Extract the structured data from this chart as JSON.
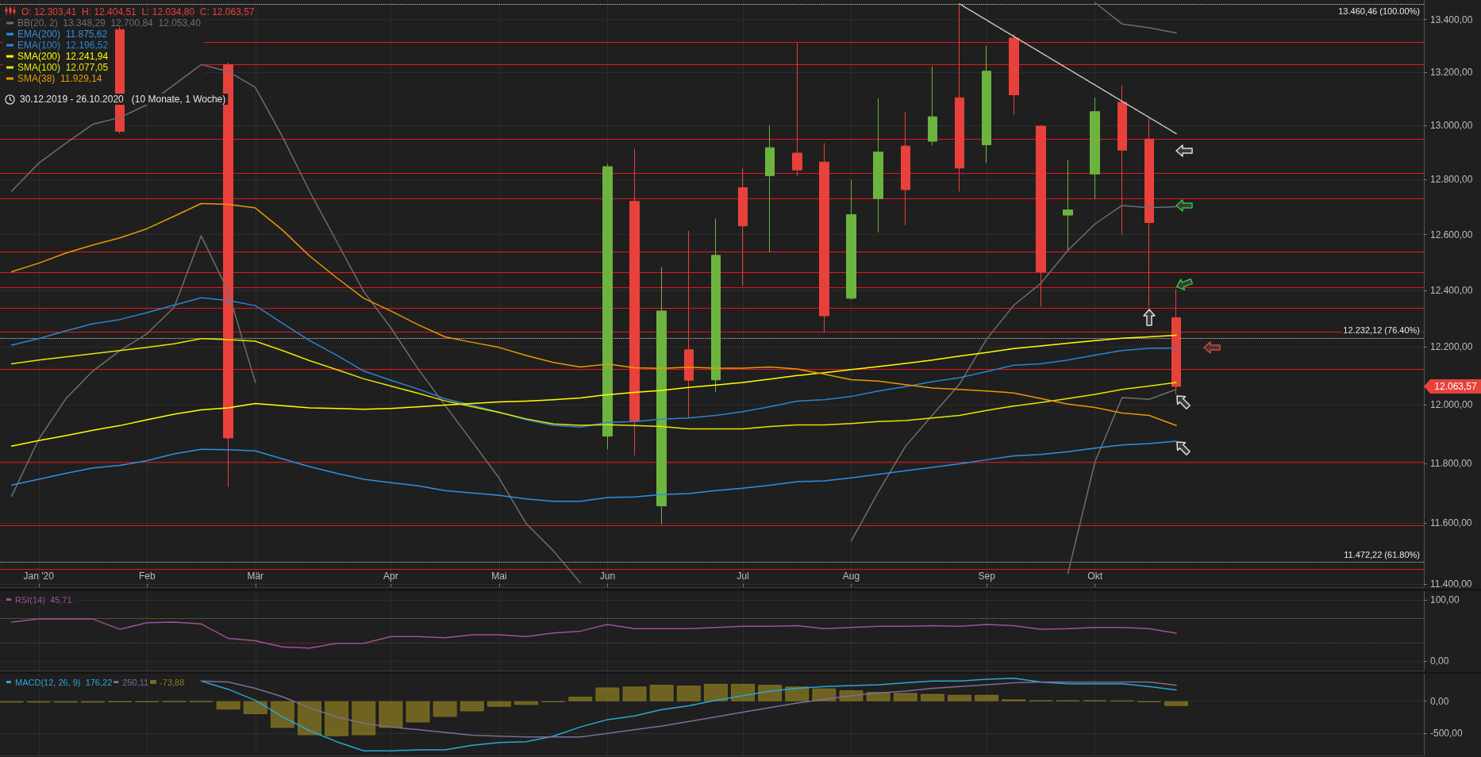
{
  "chart_data": [
    {
      "type": "candlestick",
      "title": "O: 12.303,41  H: 12.404,51  L: 12.034,80  C: 12.063,57",
      "subtitle": "30.12.2019 - 26.10.2020   (10 Monate, 1 Woche)",
      "x": [
        "2019-12-30",
        "2020-01-06",
        "2020-01-13",
        "2020-01-20",
        "2020-01-27",
        "2020-02-03",
        "2020-02-10",
        "2020-02-17",
        "2020-02-24",
        "2020-03-02",
        "2020-03-09",
        "2020-03-16",
        "2020-03-23",
        "2020-03-30",
        "2020-04-06",
        "2020-04-13",
        "2020-04-20",
        "2020-04-27",
        "2020-05-04",
        "2020-05-11",
        "2020-05-18",
        "2020-05-25",
        "2020-06-01",
        "2020-06-08",
        "2020-06-15",
        "2020-06-22",
        "2020-06-29",
        "2020-07-06",
        "2020-07-13",
        "2020-07-20",
        "2020-07-27",
        "2020-08-03",
        "2020-08-10",
        "2020-08-17",
        "2020-08-24",
        "2020-08-31",
        "2020-09-07",
        "2020-09-14",
        "2020-09-21",
        "2020-09-28",
        "2020-10-05",
        "2020-10-12",
        "2020-10-19",
        "2020-10-26"
      ],
      "ohlc": [
        null,
        null,
        null,
        null,
        [
          13361,
          13370,
          12970,
          12978
        ],
        null,
        null,
        null,
        [
          13228,
          13236,
          11721,
          11887
        ],
        null,
        null,
        null,
        null,
        null,
        null,
        null,
        null,
        null,
        null,
        null,
        null,
        null,
        [
          11893,
          12857,
          11848,
          12847
        ],
        [
          12720,
          12913,
          11828,
          11944
        ],
        [
          11658,
          12482,
          11596,
          12327
        ],
        [
          12191,
          12613,
          11955,
          12085
        ],
        [
          12086,
          12658,
          12044,
          12525
        ],
        [
          12770,
          12842,
          12416,
          12631
        ],
        [
          12814,
          13000,
          12536,
          12917
        ],
        [
          12897,
          13310,
          12812,
          12835
        ],
        [
          12864,
          12934,
          12254,
          12310
        ],
        [
          12372,
          12798,
          12367,
          12672
        ],
        [
          12730,
          13101,
          12607,
          12901
        ],
        [
          12923,
          13051,
          12633,
          12763
        ],
        [
          12941,
          13221,
          12926,
          13032
        ],
        [
          13103,
          13460,
          12756,
          12842
        ],
        [
          12928,
          13299,
          12860,
          13203
        ],
        [
          13329,
          13343,
          13038,
          13114
        ],
        [
          12997,
          13000,
          12342,
          12466
        ],
        [
          12670,
          12871,
          12541,
          12689
        ],
        [
          12820,
          13103,
          12729,
          13051
        ],
        [
          13086,
          13152,
          12600,
          12908
        ],
        [
          12949,
          13025,
          12342,
          12643
        ],
        [
          12303.41,
          12404.51,
          12034.8,
          12063.57
        ]
      ],
      "series": [
        {
          "type": "line",
          "name": "BB(20, 2)  13.348,29  12.700,84  12.053,40",
          "color": "#6e6e6e",
          "values": [
            null,
            null,
            null,
            null,
            null,
            null,
            null,
            null,
            null,
            null,
            null,
            null,
            null,
            null,
            null,
            null,
            null,
            null,
            null,
            null,
            null,
            null,
            null,
            null,
            null,
            null,
            null,
            null,
            null,
            null,
            null,
            null,
            null,
            null,
            null,
            null,
            null,
            null,
            null,
            null,
            13465,
            13383,
            13368,
            13348.29
          ]
        },
        {
          "type": "line",
          "color": "#6e6e6e",
          "values": [
            12757,
            12860,
            12933,
            13004,
            13029,
            13077,
            13152,
            13228,
            13202,
            13142,
            12958,
            12757,
            12575,
            12396,
            12268,
            12125,
            11999,
            11875,
            11751,
            11599,
            11509,
            11404,
            null,
            null,
            null,
            null,
            null,
            null,
            null,
            null,
            null,
            11541,
            11705,
            11858,
            11965,
            12072,
            12228,
            12347,
            12425,
            12543,
            12638,
            12705,
            12697,
            12700.84
          ]
        },
        {
          "type": "line",
          "color": "#6e6e6e",
          "values": [
            11690,
            11882,
            12021,
            12117,
            12188,
            12247,
            12340,
            12595,
            12396,
            12077,
            null,
            null,
            null,
            null,
            null,
            null,
            null,
            null,
            null,
            null,
            null,
            null,
            null,
            null,
            null,
            null,
            null,
            null,
            null,
            null,
            null,
            null,
            null,
            null,
            null,
            null,
            null,
            null,
            null,
            11434,
            11806,
            12025,
            12019,
            12053.4
          ]
        },
        {
          "type": "line",
          "name": "EMA(200)  11.875,62",
          "color": "#2f8fe6",
          "values": [
            11728,
            11747,
            11767,
            11785,
            11794,
            11810,
            11833,
            11848,
            11847,
            11843,
            11816,
            11790,
            11767,
            11747,
            11736,
            11725,
            11709,
            11701,
            11693,
            11681,
            11673,
            11673,
            11686,
            11688,
            11696,
            11699,
            11709,
            11717,
            11727,
            11739,
            11742,
            11752,
            11764,
            11776,
            11787,
            11799,
            11813,
            11826,
            11831,
            11840,
            11852,
            11863,
            11868,
            11875.62
          ]
        },
        {
          "type": "line",
          "name": "EMA(100)  12.196,52",
          "color": "#2a85d0",
          "values": [
            12207,
            12230,
            12257,
            12282,
            12297,
            12321,
            12348,
            12374,
            12364,
            12346,
            12284,
            12223,
            12172,
            12117,
            12085,
            12055,
            12021,
            11999,
            11975,
            11949,
            11930,
            11924,
            11940,
            11943,
            11951,
            11955,
            11964,
            11977,
            11994,
            12013,
            12018,
            12029,
            12048,
            12063,
            12080,
            12094,
            12115,
            12137,
            12142,
            12155,
            12172,
            12188,
            12196,
            12196.52
          ]
        },
        {
          "type": "line",
          "name": "SMA(200)  12.241,94",
          "color": "#ffff00",
          "values": [
            11859,
            11878,
            11895,
            11913,
            11929,
            11949,
            11968,
            11983,
            11990,
            12005,
            11997,
            11990,
            11988,
            11985,
            11988,
            11993,
            11999,
            12005,
            12010,
            12013,
            12018,
            12024,
            12035,
            12043,
            12050,
            12060,
            12068,
            12077,
            12089,
            12101,
            12111,
            12122,
            12132,
            12143,
            12155,
            12169,
            12181,
            12195,
            12204,
            12214,
            12223,
            12231,
            12236,
            12241.94
          ]
        },
        {
          "type": "line",
          "name": "SMA(100)  12.077,05",
          "color": "#e6e600",
          "values": [
            12142,
            12155,
            12166,
            12177,
            12188,
            12199,
            12212,
            12230,
            12226,
            12221,
            12188,
            12153,
            12122,
            12090,
            12065,
            12040,
            12014,
            11994,
            11974,
            11952,
            11935,
            11930,
            11932,
            11929,
            11926,
            11918,
            11918,
            11918,
            11926,
            11931,
            11931,
            11936,
            11943,
            11946,
            11955,
            11964,
            11981,
            11996,
            12008,
            12022,
            12036,
            12053,
            12065,
            12077.05
          ]
        },
        {
          "type": "line",
          "name": "SMA(38)  11.929,14",
          "color": "#e89a00",
          "values": [
            12466,
            12497,
            12533,
            12562,
            12588,
            12621,
            12666,
            12712,
            12709,
            12696,
            12616,
            12523,
            12445,
            12372,
            12327,
            12279,
            12236,
            12217,
            12199,
            12171,
            12147,
            12131,
            12141,
            12128,
            12126,
            12130,
            12127,
            12127,
            12131,
            12124,
            12106,
            12087,
            12082,
            12070,
            12058,
            12053,
            12048,
            12041,
            12022,
            12003,
            11991,
            11972,
            11964,
            11929.14
          ]
        },
        {
          "type": "line",
          "color": "#d0d0d0",
          "line_style": "dotted",
          "x": [
            "2020-08-31",
            "2020-10-26"
          ],
          "values": [
            13460,
            12969
          ]
        }
      ],
      "xlim": [
        "2019-12-27",
        "2020-12-29"
      ],
      "xticks": [
        {
          "value": "2020-01-06",
          "label": "Jan '20"
        },
        {
          "value": "2020-02-03",
          "label": "Feb"
        },
        {
          "value": "2020-03-02",
          "label": "Mär"
        },
        {
          "value": "2020-04-06",
          "label": "Apr"
        },
        {
          "value": "2020-05-04",
          "label": "Mai"
        },
        {
          "value": "2020-06-01",
          "label": "Jun"
        },
        {
          "value": "2020-07-06",
          "label": "Jul"
        },
        {
          "value": "2020-08-03",
          "label": "Aug"
        },
        {
          "value": "2020-09-07",
          "label": "Sep"
        },
        {
          "value": "2020-10-05",
          "label": "Okt"
        }
      ],
      "ylim": [
        11390,
        13475
      ],
      "log": true,
      "yticks": [
        {
          "value": 11400,
          "label": "11.400,00"
        },
        {
          "value": 11600,
          "label": "11.600,00"
        },
        {
          "value": 11800,
          "label": "11.800,00"
        },
        {
          "value": 12000,
          "label": "12.000,00"
        },
        {
          "value": 12200,
          "label": "12.200,00"
        },
        {
          "value": 12400,
          "label": "12.400,00"
        },
        {
          "value": 12600,
          "label": "12.600,00"
        },
        {
          "value": 12800,
          "label": "12.800,00"
        },
        {
          "value": 13000,
          "label": "13.000,00"
        },
        {
          "value": 13200,
          "label": "13.200,00"
        },
        {
          "value": 13400,
          "label": "13.400,00"
        }
      ],
      "grid": true,
      "legend": "top left",
      "marker": "none",
      "ref_lines": [
        {
          "axis": "y",
          "value": 13312,
          "label": null,
          "color": "#e8141b"
        },
        {
          "axis": "y",
          "value": 13229,
          "label": null,
          "color": "#e8141b"
        },
        {
          "axis": "y",
          "value": 12949,
          "label": null,
          "color": "#e8141b"
        },
        {
          "axis": "y",
          "value": 12823,
          "label": null,
          "color": "#e8141b"
        },
        {
          "axis": "y",
          "value": 12729,
          "label": null,
          "color": "#e8141b"
        },
        {
          "axis": "y",
          "value": 12537,
          "label": null,
          "color": "#e8141b"
        },
        {
          "axis": "y",
          "value": 12464,
          "label": null,
          "color": "#e8141b"
        },
        {
          "axis": "y",
          "value": 12411,
          "label": null,
          "color": "#e8141b"
        },
        {
          "axis": "y",
          "value": 12338,
          "label": null,
          "color": "#e8141b"
        },
        {
          "axis": "y",
          "value": 12254,
          "label": null,
          "color": "#e8141b"
        },
        {
          "axis": "y",
          "value": 12124,
          "label": null,
          "color": "#e8141b"
        },
        {
          "axis": "y",
          "value": 11806,
          "label": null,
          "color": "#e8141b"
        },
        {
          "axis": "y",
          "value": 11592,
          "label": null,
          "color": "#e8141b"
        },
        {
          "axis": "y",
          "value": 11449,
          "label": null,
          "color": "#e8141b"
        },
        {
          "axis": "y",
          "value": 13460.46,
          "label": "13.460,46 (100.00%)",
          "color": "#cfcfcf",
          "line_style": "dotted"
        },
        {
          "axis": "y",
          "value": 12232.12,
          "label": "12.232,12 (76.40%)",
          "color": "#cfcfcf",
          "line_style": "dotted"
        },
        {
          "axis": "y",
          "value": 11472.22,
          "label": "11.472,22 (61.80%)",
          "color": "#cfcfcf",
          "line_style": "dotted"
        }
      ],
      "annotations": [
        "12.063,57"
      ]
    },
    {
      "type": "line",
      "x": [
        "2019-12-30",
        "2020-01-06",
        "2020-01-13",
        "2020-01-20",
        "2020-01-27",
        "2020-02-03",
        "2020-02-10",
        "2020-02-17",
        "2020-02-24",
        "2020-03-02",
        "2020-03-09",
        "2020-03-16",
        "2020-03-23",
        "2020-03-30",
        "2020-04-06",
        "2020-04-13",
        "2020-04-20",
        "2020-04-27",
        "2020-05-04",
        "2020-05-11",
        "2020-05-18",
        "2020-05-25",
        "2020-06-01",
        "2020-06-08",
        "2020-06-15",
        "2020-06-22",
        "2020-06-29",
        "2020-07-06",
        "2020-07-13",
        "2020-07-20",
        "2020-07-27",
        "2020-08-03",
        "2020-08-10",
        "2020-08-17",
        "2020-08-24",
        "2020-08-31",
        "2020-09-07",
        "2020-09-14",
        "2020-09-21",
        "2020-09-28",
        "2020-10-05",
        "2020-10-12",
        "2020-10-19",
        "2020-10-26"
      ],
      "series": [
        {
          "name": "RSI(14)  45,71",
          "color": "#a0509a",
          "values": [
            64,
            69,
            69,
            69,
            52,
            63,
            64,
            61,
            37,
            33,
            23,
            21,
            29,
            29,
            40,
            40,
            38,
            43,
            43,
            40,
            46,
            49,
            60,
            53,
            53,
            53,
            55,
            57,
            57,
            58,
            53,
            55,
            57,
            57,
            58,
            57,
            60,
            58,
            52,
            53,
            55,
            55,
            53,
            45.71
          ]
        }
      ],
      "xlim": [
        "2019-12-27",
        "2020-12-29"
      ],
      "xticks": [
        "2020-01-06",
        "2020-02-03",
        "2020-03-02",
        "2020-04-06",
        "2020-05-04",
        "2020-06-01",
        "2020-07-06",
        "2020-08-03",
        "2020-09-07",
        "2020-10-05"
      ],
      "ylim": [
        -16,
        115
      ],
      "yticks": [
        {
          "value": 0,
          "label": "0,00"
        },
        {
          "value": 100,
          "label": "100,00"
        }
      ],
      "tick_labels": "y",
      "grid": true,
      "legend": "top left",
      "marker": "none",
      "ref_lines": [
        {
          "axis": "y",
          "value": 70,
          "label": null,
          "color": "#6f8f3a",
          "line_style": "dotted"
        },
        {
          "axis": "y",
          "value": 30,
          "label": null,
          "color": "#8f3a3a",
          "line_style": "dotted"
        }
      ]
    },
    {
      "type": "line",
      "x": [
        "2019-12-30",
        "2020-01-06",
        "2020-01-13",
        "2020-01-20",
        "2020-01-27",
        "2020-02-03",
        "2020-02-10",
        "2020-02-17",
        "2020-02-24",
        "2020-03-02",
        "2020-03-09",
        "2020-03-16",
        "2020-03-23",
        "2020-03-30",
        "2020-04-06",
        "2020-04-13",
        "2020-04-20",
        "2020-04-27",
        "2020-05-04",
        "2020-05-11",
        "2020-05-18",
        "2020-05-25",
        "2020-06-01",
        "2020-06-08",
        "2020-06-15",
        "2020-06-22",
        "2020-06-29",
        "2020-07-06",
        "2020-07-13",
        "2020-07-20",
        "2020-07-27",
        "2020-08-03",
        "2020-08-10",
        "2020-08-17",
        "2020-08-24",
        "2020-08-31",
        "2020-09-07",
        "2020-09-14",
        "2020-09-21",
        "2020-09-28",
        "2020-10-05",
        "2020-10-12",
        "2020-10-19",
        "2020-10-26"
      ],
      "series": [
        {
          "type": "line",
          "name": "MACD(12, 26, 9)  176,22",
          "color": "#2aa7d6",
          "values": [
            null,
            null,
            null,
            null,
            null,
            null,
            null,
            314,
            186,
            14,
            -243,
            -457,
            -629,
            -772,
            -772,
            -757,
            -757,
            -686,
            -643,
            -629,
            -543,
            -400,
            -286,
            -229,
            -129,
            -71,
            14,
            86,
            157,
            200,
            229,
            243,
            257,
            286,
            314,
            314,
            343,
            357,
            300,
            271,
            271,
            271,
            229,
            176.22
          ]
        },
        {
          "type": "line",
          "name": "250,11",
          "color": "#7a6f96",
          "values": [
            null,
            null,
            null,
            null,
            null,
            null,
            null,
            314,
            300,
            200,
            71,
            -100,
            -243,
            -343,
            -400,
            -443,
            -486,
            -529,
            -543,
            -557,
            -557,
            -557,
            -500,
            -443,
            -386,
            -314,
            -243,
            -171,
            -100,
            -29,
            29,
            86,
            129,
            157,
            200,
            229,
            257,
            286,
            300,
            300,
            300,
            300,
            300,
            250.11
          ]
        },
        {
          "type": "bar",
          "name": "-73,88",
          "color": "#8a7b22",
          "values": [
            -20,
            -20,
            -20,
            -20,
            -15,
            -15,
            -10,
            -10,
            -129,
            -200,
            -414,
            -529,
            -543,
            -529,
            -414,
            -329,
            -243,
            -157,
            -86,
            -57,
            -14,
            71,
            214,
            229,
            257,
            243,
            271,
            271,
            257,
            229,
            200,
            171,
            143,
            129,
            114,
            100,
            100,
            29,
            14,
            14,
            14,
            10,
            -14,
            -73.88
          ]
        }
      ],
      "xlim": [
        "2019-12-27",
        "2020-12-29"
      ],
      "xticks": [
        "2020-01-06",
        "2020-02-03",
        "2020-03-02",
        "2020-04-06",
        "2020-05-04",
        "2020-06-01",
        "2020-07-06",
        "2020-08-03",
        "2020-09-07",
        "2020-10-05"
      ],
      "ylim": [
        -843,
        429
      ],
      "yticks": [
        {
          "value": -500,
          "label": "-500,00"
        },
        {
          "value": 0,
          "label": "0,00"
        }
      ],
      "tick_labels": "y",
      "grid": true,
      "legend": "top left",
      "marker": "none"
    }
  ]
}
